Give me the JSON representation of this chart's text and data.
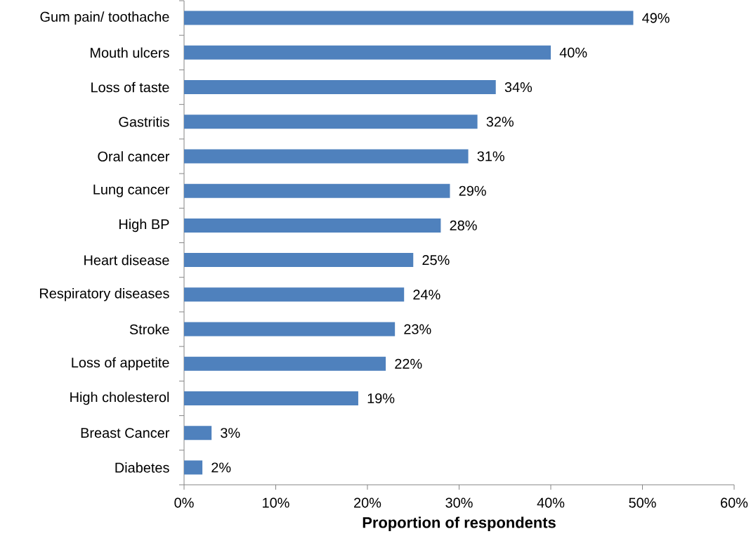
{
  "chart_data": {
    "type": "bar",
    "orientation": "horizontal",
    "categories": [
      "Gum pain/ toothache",
      "Mouth ulcers",
      "Loss of taste",
      "Gastritis",
      "Oral cancer",
      "Lung cancer",
      "High BP",
      "Heart disease",
      "Respiratory diseases",
      "Stroke",
      "Loss of appetite",
      "High cholesterol",
      "Breast Cancer",
      "Diabetes"
    ],
    "values": [
      49,
      40,
      34,
      32,
      31,
      29,
      28,
      25,
      24,
      23,
      22,
      19,
      3,
      2
    ],
    "value_labels": [
      "49%",
      "40%",
      "34%",
      "32%",
      "31%",
      "29%",
      "28%",
      "25%",
      "24%",
      "23%",
      "22%",
      "19%",
      "3%",
      "2%"
    ],
    "color": "#4f81bd",
    "xlabel": "Proportion of respondents",
    "xlim": [
      0,
      60
    ],
    "xticks": [
      {
        "value": 0,
        "label": "0%"
      },
      {
        "value": 10,
        "label": "10%"
      },
      {
        "value": 20,
        "label": "20%"
      },
      {
        "value": 30,
        "label": "30%"
      },
      {
        "value": 40,
        "label": "40%"
      },
      {
        "value": 50,
        "label": "50%"
      },
      {
        "value": 60,
        "label": "60%"
      }
    ]
  }
}
